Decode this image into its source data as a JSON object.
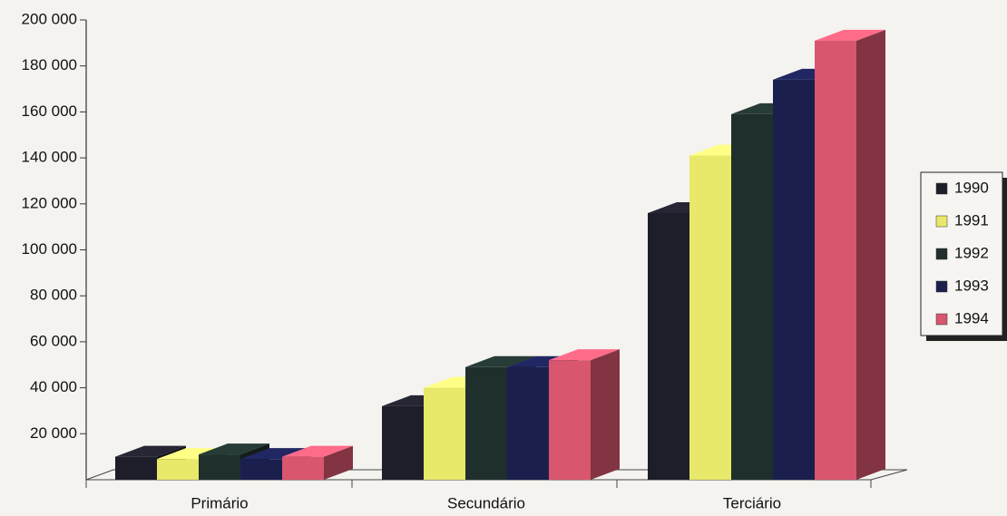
{
  "chart_data": {
    "type": "bar3d",
    "categories": [
      "Primário",
      "Secundário",
      "Terciário"
    ],
    "series": [
      {
        "name": "1990",
        "color": "#1e1e2a",
        "values": [
          10000,
          32000,
          116000
        ]
      },
      {
        "name": "1991",
        "color": "#e8e86a",
        "values": [
          9000,
          40000,
          141000
        ]
      },
      {
        "name": "1992",
        "color": "#1f2f2c",
        "values": [
          11000,
          49000,
          159000
        ]
      },
      {
        "name": "1993",
        "color": "#1a1f4e",
        "values": [
          9000,
          49000,
          174000
        ]
      },
      {
        "name": "1994",
        "color": "#d8566e",
        "values": [
          10000,
          52000,
          191000
        ]
      }
    ],
    "ylim": [
      0,
      200000
    ],
    "yticks": [
      {
        "value": 20000,
        "label": "20 000"
      },
      {
        "value": 40000,
        "label": "40 000"
      },
      {
        "value": 60000,
        "label": "60 000"
      },
      {
        "value": 80000,
        "label": "80 000"
      },
      {
        "value": 100000,
        "label": "100 000"
      },
      {
        "value": 120000,
        "label": "120 000"
      },
      {
        "value": 140000,
        "label": "140 000"
      },
      {
        "value": 160000,
        "label": "160 000"
      },
      {
        "value": 180000,
        "label": "180 000"
      },
      {
        "value": 200000,
        "label": "200 000"
      }
    ],
    "legend": "right"
  }
}
